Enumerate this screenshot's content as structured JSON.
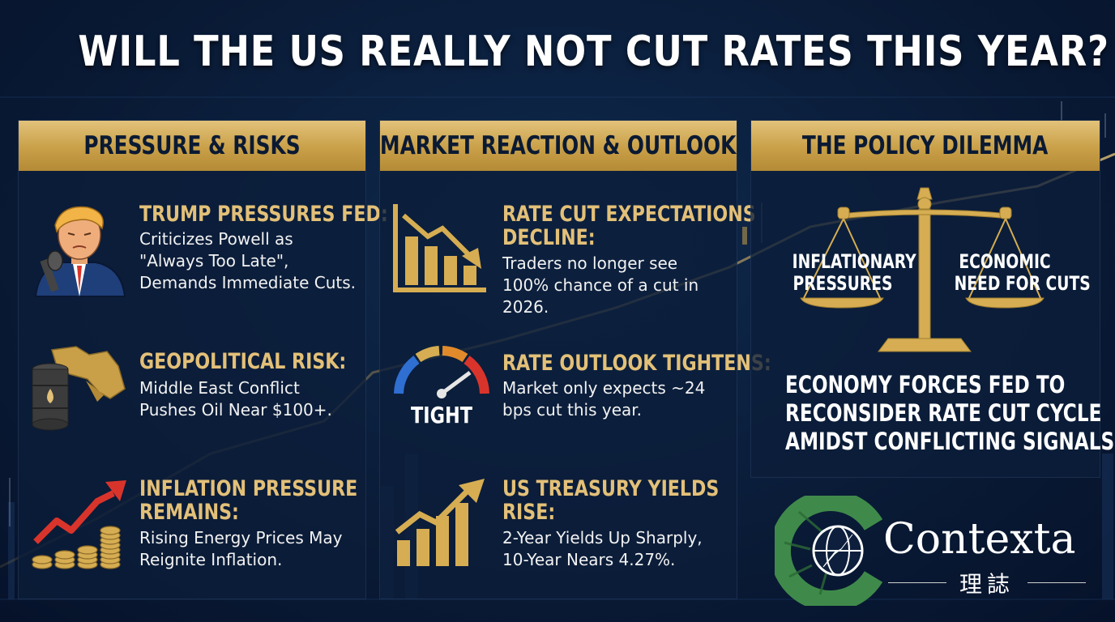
{
  "title": "WILL THE US REALLY NOT CUT RATES THIS YEAR?",
  "columns": [
    {
      "heading": "PRESSURE & RISKS",
      "items": [
        {
          "icon": "trump-icon",
          "title": [
            "TRUMP PRESSURES FED:"
          ],
          "body": [
            "Criticizes Powell as",
            "\"Always Too Late\",",
            "Demands Immediate Cuts."
          ]
        },
        {
          "icon": "oil-barrel-map-icon",
          "title": [
            "GEOPOLITICAL RISK:"
          ],
          "body": [
            "Middle East Conflict",
            "Pushes Oil Near $100+."
          ]
        },
        {
          "icon": "inflation-coins-icon",
          "title": [
            "INFLATION PRESSURE",
            "REMAINS:"
          ],
          "body": [
            "Rising Energy Prices May",
            "Reignite Inflation."
          ]
        }
      ]
    },
    {
      "heading": "MARKET REACTION & OUTLOOK",
      "items": [
        {
          "icon": "declining-bar-chart-icon",
          "title": [
            "RATE CUT EXPECTATIONS",
            "DECLINE:"
          ],
          "body": [
            "Traders no longer see",
            "100% chance of a cut in",
            "2026."
          ]
        },
        {
          "icon": "gauge-icon",
          "gauge_label": "TIGHT",
          "title": [
            "RATE OUTLOOK TIGHTENS:"
          ],
          "body": [
            "Market only expects ~24",
            "bps cut this year."
          ]
        },
        {
          "icon": "rising-bar-chart-icon",
          "title": [
            "US TREASURY YIELDS",
            "RISE:"
          ],
          "body": [
            "2-Year Yields Up Sharply,",
            "10-Year Nears 4.27%."
          ]
        }
      ]
    },
    {
      "heading": "THE POLICY DILEMMA",
      "scale_left": [
        "INFLATIONARY",
        "PRESSURES"
      ],
      "scale_right": [
        "ECONOMIC",
        "NEED FOR CUTS"
      ],
      "conclusion": [
        "ECONOMY FORCES FED TO",
        "RECONSIDER RATE CUT CYCLE",
        "AMIDST CONFLICTING SIGNALS."
      ]
    }
  ],
  "logo": {
    "name": "Contexta",
    "subtitle": "理誌",
    "icon": "compass-globe-logo-icon"
  },
  "colors": {
    "gold": "#e3c078",
    "header_gold": "#c9a048",
    "panel": "#0c1e3a",
    "background": "#0a1c38",
    "red": "#d9342b",
    "logo_green": "#3f8a4a"
  }
}
